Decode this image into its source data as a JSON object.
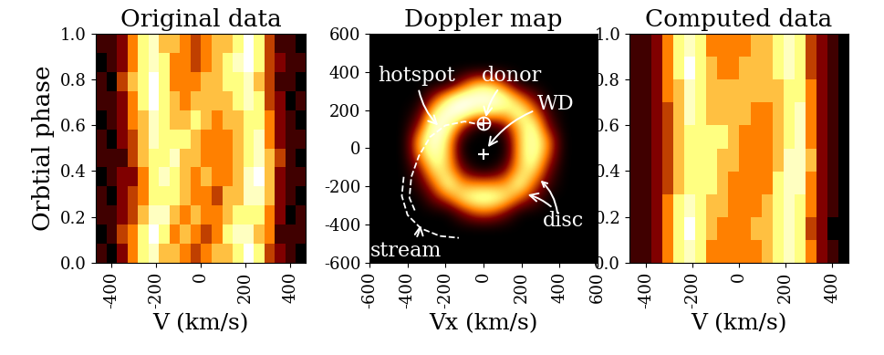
{
  "chart_data": [
    {
      "type": "heatmap",
      "title": "Original data",
      "x_label": "V (km/s)",
      "y_label": "Orbtial phase",
      "xlim": [
        -470,
        470
      ],
      "ylim": [
        0,
        1
      ],
      "xticks": [
        -400,
        -200,
        0,
        200,
        400
      ],
      "yticks": [
        {
          "value": 0,
          "label": "0.0"
        },
        {
          "value": 0.2,
          "label": "0.2"
        },
        {
          "value": 0.4,
          "label": "0.4"
        },
        {
          "value": 0.6,
          "label": "0.6"
        },
        {
          "value": 0.8,
          "label": "0.8"
        },
        {
          "value": 1,
          "label": "1.0"
        }
      ],
      "cells": [
        [
          1,
          0,
          2,
          4,
          6,
          7,
          5,
          5,
          4,
          3,
          4,
          5,
          5,
          6,
          8,
          6,
          3,
          2,
          1,
          0
        ],
        [
          0,
          1,
          3,
          4,
          6,
          8,
          6,
          4,
          5,
          4,
          3,
          4,
          6,
          7,
          7,
          5,
          4,
          1,
          1,
          1
        ],
        [
          1,
          1,
          2,
          3,
          5,
          7,
          7,
          5,
          4,
          5,
          4,
          4,
          5,
          6,
          6,
          6,
          4,
          2,
          0,
          1
        ],
        [
          1,
          0,
          2,
          3,
          4,
          6,
          6,
          6,
          5,
          4,
          4,
          3,
          5,
          5,
          7,
          7,
          5,
          2,
          1,
          0
        ],
        [
          0,
          1,
          2,
          2,
          4,
          6,
          7,
          6,
          5,
          4,
          5,
          4,
          4,
          5,
          7,
          8,
          5,
          2,
          1,
          1
        ],
        [
          1,
          1,
          1,
          3,
          5,
          6,
          6,
          7,
          5,
          5,
          4,
          4,
          4,
          5,
          6,
          7,
          5,
          3,
          1,
          0
        ],
        [
          1,
          0,
          2,
          3,
          5,
          7,
          6,
          6,
          6,
          5,
          4,
          4,
          4,
          5,
          6,
          7,
          4,
          2,
          1,
          1
        ],
        [
          0,
          1,
          2,
          4,
          5,
          7,
          6,
          5,
          5,
          6,
          5,
          4,
          5,
          5,
          6,
          6,
          4,
          2,
          1,
          0
        ],
        [
          1,
          1,
          2,
          4,
          6,
          8,
          6,
          5,
          4,
          5,
          5,
          5,
          5,
          6,
          7,
          6,
          3,
          2,
          0,
          1
        ],
        [
          1,
          0,
          3,
          5,
          6,
          8,
          6,
          4,
          4,
          4,
          5,
          5,
          6,
          6,
          7,
          5,
          3,
          1,
          1,
          0
        ],
        [
          0,
          1,
          2,
          4,
          6,
          7,
          6,
          4,
          4,
          3,
          4,
          5,
          6,
          7,
          8,
          6,
          3,
          2,
          1,
          1
        ],
        [
          1,
          1,
          2,
          4,
          6,
          7,
          5,
          5,
          4,
          3,
          4,
          5,
          5,
          6,
          8,
          6,
          3,
          1,
          1,
          0
        ]
      ]
    },
    {
      "type": "doppler_map",
      "title": "Doppler map",
      "x_label": "Vx (km/s)",
      "xlim": [
        -600,
        600
      ],
      "ylim": [
        -600,
        600
      ],
      "xticks": [
        -600,
        -400,
        -200,
        0,
        200,
        400,
        600
      ],
      "yticks": [
        -600,
        -400,
        -200,
        0,
        200,
        400,
        600
      ],
      "cells": [
        [
          0,
          0,
          0,
          0,
          0,
          0,
          0,
          0,
          0,
          0,
          0,
          0,
          0,
          0,
          0,
          0
        ],
        [
          0,
          0,
          0,
          0,
          0,
          0,
          0,
          0,
          0,
          0,
          0,
          0,
          0,
          0,
          0,
          0
        ],
        [
          0,
          0,
          0,
          0,
          0,
          0,
          0,
          0,
          0,
          0,
          0,
          0,
          0,
          0,
          0,
          0
        ],
        [
          0,
          0,
          0,
          0,
          0,
          0,
          3,
          6,
          6,
          3,
          0,
          0,
          0,
          0,
          0,
          0
        ],
        [
          0,
          0,
          0,
          0,
          3,
          7,
          9,
          9,
          9,
          8,
          5,
          2,
          0,
          0,
          0,
          0
        ],
        [
          0,
          0,
          0,
          1,
          7,
          9,
          9,
          7,
          7,
          6,
          8,
          5,
          1,
          0,
          0,
          0
        ],
        [
          0,
          0,
          0,
          3,
          9,
          8,
          3,
          0,
          0,
          2,
          6,
          8,
          2,
          0,
          0,
          0
        ],
        [
          0,
          0,
          0,
          6,
          9,
          6,
          0,
          0,
          0,
          0,
          6,
          8,
          5,
          0,
          0,
          0
        ],
        [
          0,
          0,
          0,
          5,
          8,
          6,
          0,
          0,
          0,
          0,
          6,
          8,
          4,
          0,
          0,
          0
        ],
        [
          0,
          0,
          0,
          2,
          7,
          6,
          2,
          0,
          0,
          2,
          6,
          7,
          2,
          0,
          0,
          0
        ],
        [
          0,
          0,
          0,
          1,
          4,
          8,
          5,
          5,
          5,
          5,
          8,
          4,
          1,
          0,
          0,
          0
        ],
        [
          0,
          0,
          0,
          0,
          2,
          4,
          7,
          8,
          8,
          7,
          4,
          2,
          0,
          0,
          0,
          0
        ],
        [
          0,
          0,
          0,
          0,
          0,
          0,
          2,
          4,
          4,
          2,
          0,
          0,
          0,
          0,
          0,
          0
        ],
        [
          0,
          0,
          0,
          0,
          0,
          0,
          0,
          0,
          0,
          0,
          0,
          0,
          0,
          0,
          0,
          0
        ],
        [
          0,
          0,
          0,
          0,
          0,
          0,
          0,
          0,
          0,
          0,
          0,
          0,
          0,
          0,
          0,
          0
        ],
        [
          0,
          0,
          0,
          0,
          0,
          0,
          0,
          0,
          0,
          0,
          0,
          0,
          0,
          0,
          0,
          0
        ]
      ],
      "curves": [
        {
          "line_style": "dashed",
          "color": "#ffffff",
          "x": [
            0,
            -100,
            -200,
            -280,
            -340,
            -380,
            -390,
            -360
          ],
          "y": [
            120,
            140,
            120,
            60,
            -40,
            -150,
            -260,
            -330
          ]
        },
        {
          "line_style": "dashed",
          "color": "#ffffff",
          "x": [
            -420,
            -430,
            -400,
            -330,
            -230,
            -130
          ],
          "y": [
            -150,
            -250,
            -350,
            -420,
            -460,
            -470
          ]
        }
      ],
      "points": [
        {
          "x": 0,
          "y": 130,
          "marker": "circle",
          "color": "#ffffff"
        },
        {
          "x": 0,
          "y": -30,
          "marker": "plus",
          "color": "#ffffff"
        }
      ],
      "annotations": [
        {
          "text": "hotspot"
        },
        {
          "text": "donor"
        },
        {
          "text": "WD"
        },
        {
          "text": "disc"
        },
        {
          "text": "stream"
        }
      ]
    },
    {
      "type": "heatmap",
      "title": "Computed data",
      "x_label": "V (km/s)",
      "xlim": [
        -470,
        470
      ],
      "ylim": [
        0,
        1
      ],
      "xticks": [
        -400,
        -200,
        0,
        200,
        400
      ],
      "yticks": [
        {
          "value": 0,
          "label": "0.0"
        },
        {
          "value": 0.2,
          "label": "0.2"
        },
        {
          "value": 0.4,
          "label": "0.4"
        },
        {
          "value": 0.6,
          "label": "0.6"
        },
        {
          "value": 0.8,
          "label": "0.8"
        },
        {
          "value": 1,
          "label": "1.0"
        }
      ],
      "cells": [
        [
          1,
          1,
          2,
          4,
          6,
          7,
          6,
          4,
          4,
          4,
          4,
          4,
          5,
          6,
          7,
          6,
          4,
          2,
          1,
          0
        ],
        [
          1,
          1,
          2,
          4,
          6,
          8,
          6,
          5,
          4,
          4,
          4,
          5,
          5,
          6,
          7,
          6,
          3,
          2,
          0,
          0
        ],
        [
          1,
          1,
          2,
          4,
          6,
          7,
          6,
          5,
          5,
          4,
          4,
          4,
          5,
          6,
          7,
          6,
          4,
          2,
          1,
          0
        ],
        [
          1,
          1,
          2,
          3,
          5,
          6,
          6,
          6,
          5,
          4,
          4,
          4,
          4,
          6,
          7,
          7,
          4,
          2,
          1,
          0
        ],
        [
          1,
          1,
          2,
          3,
          5,
          6,
          6,
          6,
          5,
          5,
          4,
          4,
          4,
          5,
          7,
          7,
          5,
          2,
          1,
          0
        ],
        [
          1,
          1,
          2,
          3,
          5,
          6,
          6,
          6,
          6,
          5,
          4,
          4,
          4,
          5,
          6,
          7,
          4,
          2,
          1,
          0
        ],
        [
          1,
          1,
          2,
          3,
          5,
          7,
          6,
          5,
          5,
          5,
          5,
          4,
          4,
          5,
          6,
          7,
          4,
          2,
          1,
          0
        ],
        [
          1,
          1,
          2,
          4,
          5,
          7,
          6,
          5,
          5,
          5,
          5,
          5,
          5,
          5,
          6,
          6,
          4,
          2,
          1,
          0
        ],
        [
          1,
          1,
          2,
          4,
          6,
          8,
          6,
          5,
          4,
          4,
          5,
          5,
          5,
          6,
          7,
          6,
          3,
          2,
          1,
          0
        ],
        [
          1,
          1,
          2,
          4,
          6,
          7,
          6,
          4,
          4,
          4,
          4,
          5,
          5,
          6,
          7,
          6,
          3,
          2,
          1,
          0
        ]
      ]
    }
  ]
}
